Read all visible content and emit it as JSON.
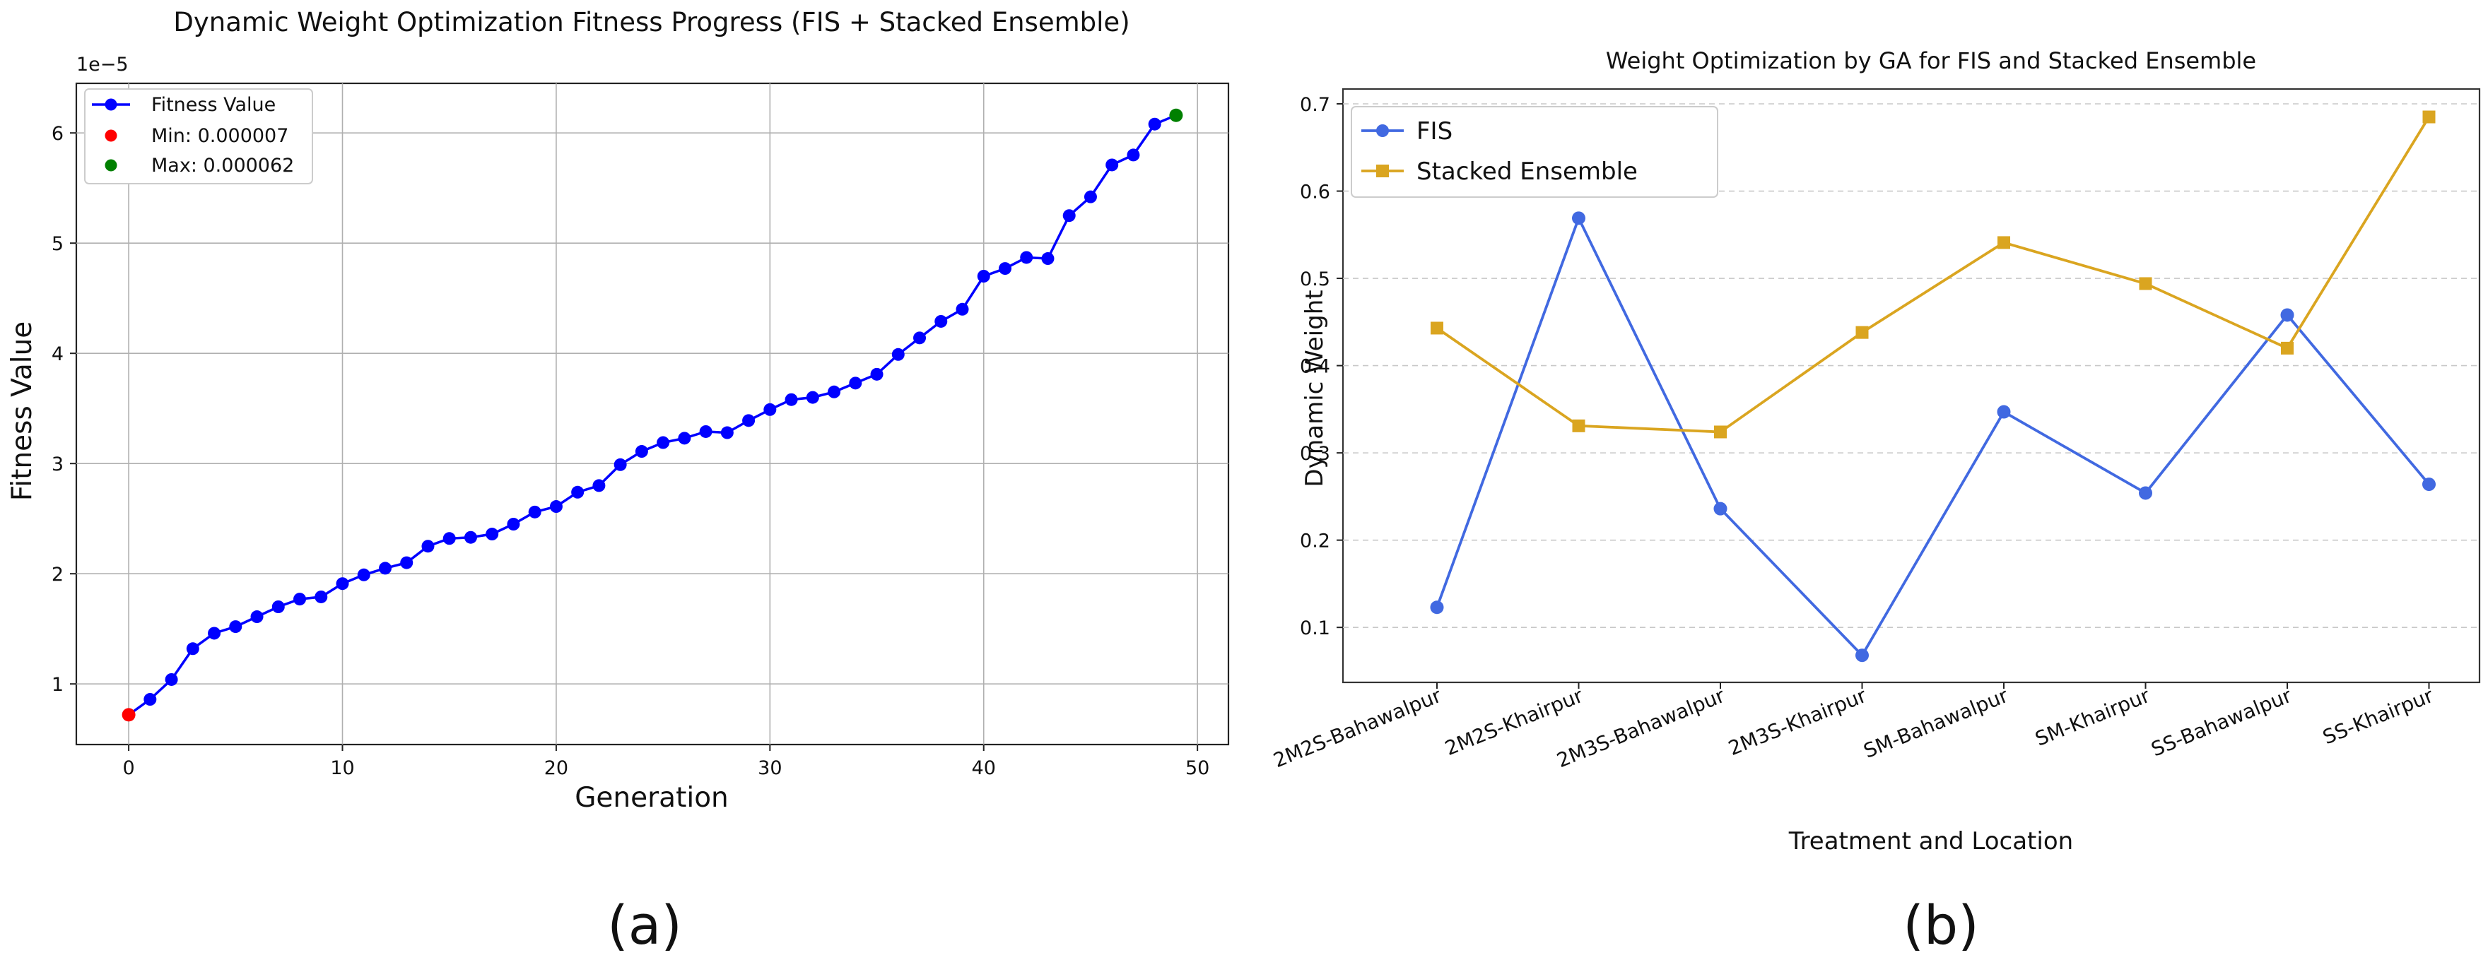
{
  "panel_labels": [
    "(a)",
    "(b)"
  ],
  "chart_data": [
    {
      "type": "line",
      "title": "Dynamic Weight Optimization Fitness Progress (FIS + Stacked Ensemble)",
      "xlabel": "Generation",
      "ylabel": "Fitness Value",
      "y_offset_label": "1e−5",
      "xlim": [
        -2.45,
        51.45
      ],
      "ylim": [
        0.45,
        6.45
      ],
      "y_scale_note": "values in units of 1e-5",
      "xticks": [
        0,
        10,
        20,
        30,
        40,
        50
      ],
      "yticks": [
        1,
        2,
        3,
        4,
        5,
        6
      ],
      "grid": true,
      "legend_position": "top-left",
      "series": [
        {
          "name": "Fitness Value",
          "color": "#0000ff",
          "marker": "circle",
          "x": [
            0,
            1,
            2,
            3,
            4,
            5,
            6,
            7,
            8,
            9,
            10,
            11,
            12,
            13,
            14,
            15,
            16,
            17,
            18,
            19,
            20,
            21,
            22,
            23,
            24,
            25,
            26,
            27,
            28,
            29,
            30,
            31,
            32,
            33,
            34,
            35,
            36,
            37,
            38,
            39,
            40,
            41,
            42,
            43,
            44,
            45,
            46,
            47,
            48,
            49
          ],
          "y": [
            0.72,
            0.86,
            1.04,
            1.32,
            1.46,
            1.52,
            1.61,
            1.7,
            1.77,
            1.79,
            1.91,
            1.99,
            2.05,
            2.1,
            2.25,
            2.32,
            2.33,
            2.36,
            2.45,
            2.56,
            2.61,
            2.74,
            2.8,
            2.99,
            3.11,
            3.19,
            3.23,
            3.29,
            3.28,
            3.39,
            3.49,
            3.58,
            3.6,
            3.65,
            3.73,
            3.81,
            3.99,
            4.14,
            4.29,
            4.4,
            4.7,
            4.77,
            4.87,
            4.86,
            5.25,
            5.42,
            5.71,
            5.8,
            6.08,
            6.16
          ]
        }
      ],
      "highlights": [
        {
          "label": "Min: 0.000007",
          "x": 0,
          "y": 0.72,
          "color": "#ff0000"
        },
        {
          "label": "Max: 0.000062",
          "x": 49,
          "y": 6.16,
          "color": "#008000"
        }
      ]
    },
    {
      "type": "line",
      "title": "Weight Optimization by GA for FIS and Stacked Ensemble",
      "xlabel": "Treatment and Location",
      "ylabel": "Dynamic Weight",
      "categories": [
        "2M2S-Bahawalpur",
        "2M2S-Khairpur",
        "2M3S-Bahawalpur",
        "2M3S-Khairpur",
        "SM-Bahawalpur",
        "SM-Khairpur",
        "SS-Bahawalpur",
        "SS-Khairpur"
      ],
      "ylim": [
        0.037,
        0.717
      ],
      "yticks": [
        0.1,
        0.2,
        0.3,
        0.4,
        0.5,
        0.6,
        0.7
      ],
      "grid": "y-dashed",
      "legend_position": "top-left",
      "series": [
        {
          "name": "FIS",
          "color": "#4169e1",
          "marker": "circle",
          "values": [
            0.123,
            0.569,
            0.236,
            0.068,
            0.347,
            0.254,
            0.458,
            0.264
          ]
        },
        {
          "name": "Stacked Ensemble",
          "color": "#daa520",
          "marker": "square",
          "values": [
            0.443,
            0.331,
            0.324,
            0.438,
            0.541,
            0.494,
            0.42,
            0.685
          ]
        }
      ]
    }
  ]
}
